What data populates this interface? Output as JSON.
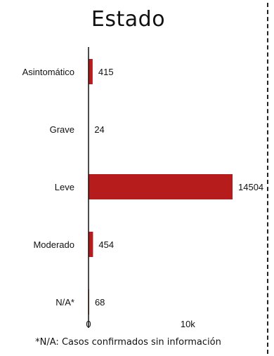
{
  "chart_data": {
    "type": "bar",
    "orientation": "horizontal",
    "title": "Estado",
    "categories": [
      "Asintomático",
      "Grave",
      "Leve",
      "Moderado",
      "N/A*"
    ],
    "values": [
      415,
      24,
      14504,
      454,
      68
    ],
    "xlim": [
      0,
      14504
    ],
    "x_ticks": [
      0,
      10000
    ],
    "x_tick_labels": [
      "0",
      "10k"
    ],
    "bar_color": "#b71c1c",
    "grid": false,
    "legend": "none"
  },
  "footnote": "*N/A: Casos confirmados sin información"
}
